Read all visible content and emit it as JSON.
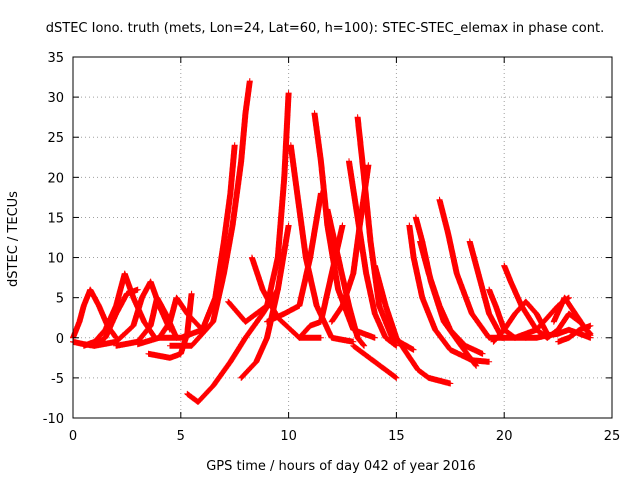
{
  "chart_data": {
    "type": "scatter",
    "title": "dSTEC Iono. truth (mets, Lon=24, Lat=60, h=100): STEC-STEC_elemax in phase cont.",
    "xlabel": "GPS time / hours of day 042 of year 2016",
    "ylabel": "dSTEC  / TECUs",
    "xlim": [
      0,
      25
    ],
    "ylim": [
      -10,
      35
    ],
    "xticks": [
      0,
      5,
      10,
      15,
      20,
      25
    ],
    "yticks": [
      -10,
      -5,
      0,
      5,
      10,
      15,
      20,
      25,
      30,
      35
    ],
    "grid": true,
    "legend": "none",
    "marker": "+",
    "color": "#ff0000",
    "series": [
      {
        "x": [
          0.0,
          0.3,
          0.5,
          0.8,
          1.2,
          1.6,
          2.0
        ],
        "y": [
          0.0,
          2.0,
          4.0,
          6.0,
          4.0,
          1.5,
          0.0
        ]
      },
      {
        "x": [
          0.0,
          0.5,
          1.0,
          1.5,
          2.0,
          2.5,
          3.0
        ],
        "y": [
          -0.5,
          -0.8,
          -1.0,
          0.0,
          3.0,
          5.5,
          6.0
        ]
      },
      {
        "x": [
          0.5,
          1.0,
          1.5,
          2.0,
          2.4,
          2.8,
          3.3,
          3.8
        ],
        "y": [
          -1.0,
          -0.5,
          1.0,
          4.0,
          8.0,
          5.0,
          2.0,
          0.0
        ]
      },
      {
        "x": [
          1.0,
          2.0,
          2.8,
          3.2,
          3.6,
          4.0,
          4.5
        ],
        "y": [
          -1.0,
          -0.5,
          1.5,
          5.0,
          7.0,
          4.0,
          1.0
        ]
      },
      {
        "x": [
          2.0,
          3.0,
          3.6,
          3.9,
          4.3,
          4.8
        ],
        "y": [
          -1.0,
          -0.5,
          1.5,
          5.0,
          3.0,
          0.0
        ]
      },
      {
        "x": [
          3.0,
          4.0,
          4.5,
          4.8,
          5.3,
          6.0
        ],
        "y": [
          -0.8,
          0.0,
          2.0,
          5.0,
          3.0,
          1.0
        ]
      },
      {
        "x": [
          3.5,
          4.5,
          5.0,
          5.3,
          5.5
        ],
        "y": [
          -2.0,
          -2.5,
          -2.0,
          0.5,
          5.5
        ]
      },
      {
        "x": [
          4.0,
          5.0,
          6.0,
          6.6,
          7.0,
          7.3,
          7.5
        ],
        "y": [
          0.0,
          0.0,
          1.0,
          5.0,
          12.0,
          18.0,
          24.0
        ]
      },
      {
        "x": [
          4.5,
          5.5,
          6.5,
          7.0,
          7.4,
          7.8,
          8.0,
          8.2
        ],
        "y": [
          -1.0,
          -1.0,
          2.0,
          8.0,
          14.0,
          22.0,
          28.0,
          32.0
        ]
      },
      {
        "x": [
          5.3,
          5.8,
          6.5,
          7.3,
          8.0,
          8.8,
          9.5
        ],
        "y": [
          -7.0,
          -8.0,
          -6.0,
          -3.0,
          0.0,
          3.0,
          6.0
        ]
      },
      {
        "x": [
          7.2,
          8.0,
          9.0,
          9.5,
          9.8,
          10.0
        ],
        "y": [
          4.5,
          2.0,
          4.0,
          10.0,
          20.0,
          30.5
        ]
      },
      {
        "x": [
          7.8,
          8.5,
          9.0,
          9.5,
          10.0
        ],
        "y": [
          -5.0,
          -3.0,
          0.0,
          6.0,
          14.0
        ]
      },
      {
        "x": [
          8.3,
          8.8,
          9.5,
          10.5,
          11.5
        ],
        "y": [
          10.0,
          6.0,
          2.5,
          0.0,
          0.0
        ]
      },
      {
        "x": [
          9.0,
          9.8,
          10.5,
          11.0,
          11.5
        ],
        "y": [
          2.0,
          3.0,
          4.0,
          10.0,
          18.0
        ]
      },
      {
        "x": [
          10.1,
          10.4,
          10.8,
          11.3,
          12.0,
          13.0
        ],
        "y": [
          24.0,
          18.0,
          10.0,
          4.0,
          0.0,
          -0.5
        ]
      },
      {
        "x": [
          10.5,
          11.0,
          11.5,
          12.0,
          12.5
        ],
        "y": [
          0.0,
          1.5,
          2.0,
          8.0,
          14.0
        ]
      },
      {
        "x": [
          11.2,
          11.5,
          11.8,
          12.3,
          13.0,
          14.0
        ],
        "y": [
          28.0,
          22.0,
          14.0,
          6.0,
          1.0,
          0.0
        ]
      },
      {
        "x": [
          11.8,
          12.3,
          12.8,
          13.2,
          13.5
        ],
        "y": [
          16.0,
          10.0,
          4.0,
          0.0,
          -1.0
        ]
      },
      {
        "x": [
          12.0,
          12.5,
          13.0,
          13.3,
          13.7
        ],
        "y": [
          2.0,
          4.0,
          8.0,
          14.0,
          21.5
        ]
      },
      {
        "x": [
          12.8,
          13.2,
          13.6,
          14.0,
          14.5,
          15.0
        ],
        "y": [
          22.0,
          15.0,
          8.0,
          3.0,
          0.0,
          -1.0
        ]
      },
      {
        "x": [
          13.2,
          13.5,
          13.8,
          14.2,
          14.8,
          15.8
        ],
        "y": [
          27.5,
          20.0,
          12.0,
          4.0,
          0.0,
          -1.5
        ]
      },
      {
        "x": [
          13.0,
          13.5,
          14.0,
          14.5,
          15.0
        ],
        "y": [
          -1.0,
          -2.0,
          -3.0,
          -4.0,
          -5.0
        ]
      },
      {
        "x": [
          14.0,
          14.5,
          15.0,
          15.5,
          16.0,
          16.5,
          17.5
        ],
        "y": [
          9.0,
          4.0,
          0.0,
          -2.0,
          -4.0,
          -5.0,
          -5.7
        ]
      },
      {
        "x": [
          15.6,
          15.8,
          16.2,
          16.8,
          17.5,
          18.5,
          19.3
        ],
        "y": [
          14.0,
          10.0,
          5.0,
          1.0,
          -1.5,
          -2.8,
          -3.0
        ]
      },
      {
        "x": [
          15.9,
          16.2,
          16.6,
          17.2,
          18.0,
          18.7
        ],
        "y": [
          15.0,
          12.0,
          7.0,
          2.0,
          -1.0,
          -3.5
        ]
      },
      {
        "x": [
          16.1,
          16.5,
          17.0,
          17.5,
          18.2,
          19.0
        ],
        "y": [
          12.0,
          8.0,
          4.0,
          1.0,
          -1.0,
          -2.0
        ]
      },
      {
        "x": [
          17.0,
          17.4,
          17.8,
          18.5,
          19.3,
          20.0
        ],
        "y": [
          17.2,
          13.0,
          8.0,
          3.0,
          0.0,
          0.0
        ]
      },
      {
        "x": [
          18.4,
          18.8,
          19.3,
          19.9,
          20.5
        ],
        "y": [
          12.0,
          8.0,
          3.0,
          0.0,
          0.0
        ]
      },
      {
        "x": [
          19.3,
          19.6,
          20.0,
          20.5,
          21.0
        ],
        "y": [
          6.0,
          4.0,
          1.0,
          0.0,
          0.0
        ]
      },
      {
        "x": [
          19.5,
          20.0,
          20.5,
          21.0,
          21.5,
          22.0
        ],
        "y": [
          -0.5,
          1.0,
          3.0,
          4.5,
          3.0,
          0.5
        ]
      },
      {
        "x": [
          20.0,
          20.3,
          20.8,
          21.5,
          22.0
        ],
        "y": [
          9.0,
          7.0,
          4.0,
          1.0,
          0.0
        ]
      },
      {
        "x": [
          20.5,
          21.0,
          21.5,
          22.0,
          22.5,
          23.0
        ],
        "y": [
          0.0,
          0.5,
          1.0,
          2.5,
          4.0,
          5.0
        ]
      },
      {
        "x": [
          21.0,
          21.5,
          22.0,
          22.5,
          23.0,
          23.5,
          24.0
        ],
        "y": [
          0.0,
          0.0,
          0.3,
          0.5,
          1.0,
          0.5,
          0.0
        ]
      },
      {
        "x": [
          22.0,
          22.5,
          23.0,
          23.5,
          24.0
        ],
        "y": [
          0.0,
          1.0,
          3.0,
          2.0,
          0.5
        ]
      },
      {
        "x": [
          22.3,
          22.8,
          23.3,
          23.8,
          24.0
        ],
        "y": [
          2.0,
          5.0,
          3.0,
          1.0,
          0.3
        ]
      },
      {
        "x": [
          22.5,
          23.0,
          23.5,
          24.0
        ],
        "y": [
          -0.5,
          0.0,
          1.0,
          1.5
        ]
      }
    ]
  }
}
